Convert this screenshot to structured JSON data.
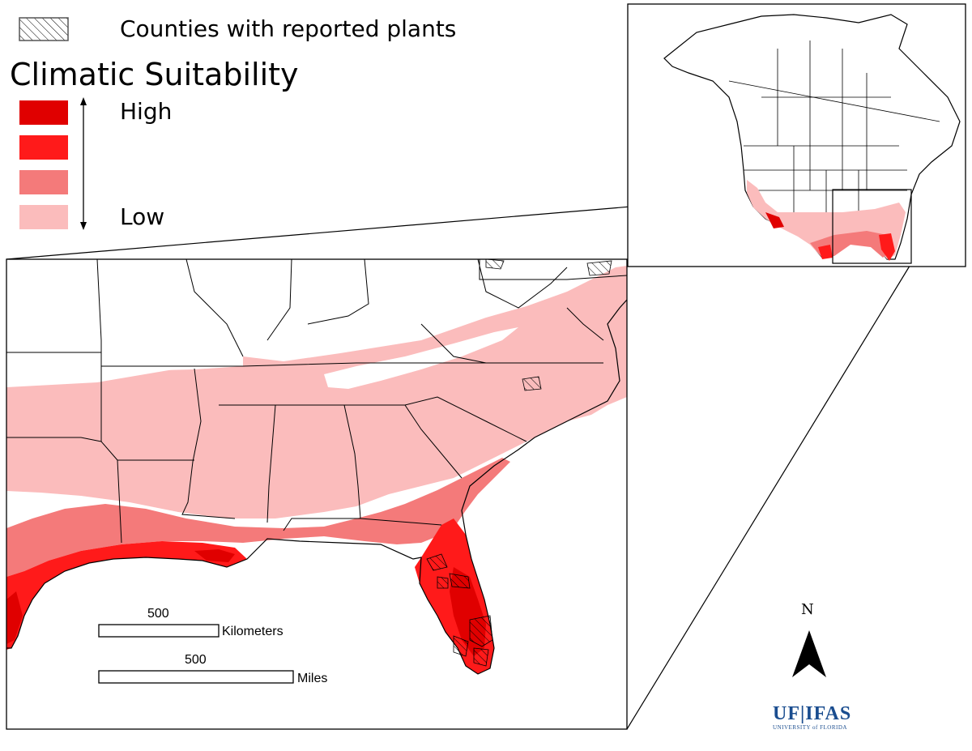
{
  "legend": {
    "hatch_label": "Counties with reported plants",
    "title": "Climatic Suitability",
    "high_label": "High",
    "low_label": "Low",
    "classes": [
      {
        "level": 4,
        "color": "#e00000"
      },
      {
        "level": 3,
        "color": "#ff1a1a"
      },
      {
        "level": 2,
        "color": "#f47a7a"
      },
      {
        "level": 1,
        "color": "#fbbcbc"
      }
    ]
  },
  "scale_bars": {
    "km_value": "500",
    "km_unit": "Kilometers",
    "mi_value": "500",
    "mi_unit": "Miles"
  },
  "north_arrow": {
    "label": "N"
  },
  "logo": {
    "main": "UF|IFAS",
    "sub": "UNIVERSITY of FLORIDA"
  },
  "colors": {
    "high": "#e00000",
    "mid_high": "#ff1a1a",
    "mid_low": "#f47a7a",
    "low": "#fbbcbc",
    "logo_blue": "#1a4d8f"
  }
}
